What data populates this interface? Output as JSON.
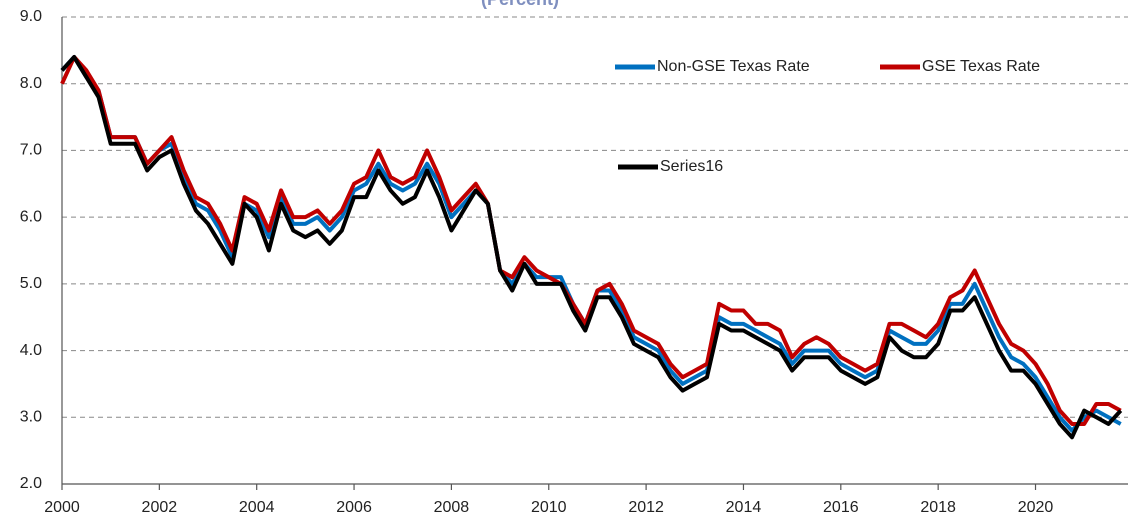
{
  "chart_data": {
    "type": "line",
    "subtitle": "(Percent)",
    "x": [
      2000,
      2000.25,
      2000.5,
      2000.75,
      2001,
      2001.25,
      2001.5,
      2001.75,
      2002,
      2002.25,
      2002.5,
      2002.75,
      2003,
      2003.25,
      2003.5,
      2003.75,
      2004,
      2004.25,
      2004.5,
      2004.75,
      2005,
      2005.25,
      2005.5,
      2005.75,
      2006,
      2006.25,
      2006.5,
      2006.75,
      2007,
      2007.25,
      2007.5,
      2007.75,
      2008,
      2008.25,
      2008.5,
      2008.75,
      2009,
      2009.25,
      2009.5,
      2009.75,
      2010,
      2010.25,
      2010.5,
      2010.75,
      2011,
      2011.25,
      2011.5,
      2011.75,
      2012,
      2012.25,
      2012.5,
      2012.75,
      2013,
      2013.25,
      2013.5,
      2013.75,
      2014,
      2014.25,
      2014.5,
      2014.75,
      2015,
      2015.25,
      2015.5,
      2015.75,
      2016,
      2016.25,
      2016.5,
      2016.75,
      2017,
      2017.25,
      2017.5,
      2017.75,
      2018,
      2018.25,
      2018.5,
      2018.75,
      2019,
      2019.25,
      2019.5,
      2019.75,
      2020,
      2020.25,
      2020.5,
      2020.75,
      2021,
      2021.25,
      2021.5,
      2021.75
    ],
    "series": [
      {
        "name": "Non-GSE Texas Rate",
        "color": "#0070c0",
        "values": [
          8.2,
          8.4,
          8.1,
          7.9,
          7.2,
          7.2,
          7.2,
          6.8,
          7.0,
          7.1,
          6.6,
          6.2,
          6.1,
          5.8,
          5.4,
          6.2,
          6.1,
          5.7,
          6.3,
          5.9,
          5.9,
          6.0,
          5.8,
          6.0,
          6.4,
          6.5,
          6.8,
          6.5,
          6.4,
          6.5,
          6.8,
          6.5,
          6.0,
          6.2,
          6.4,
          6.2,
          5.2,
          5.0,
          5.3,
          5.1,
          5.1,
          5.1,
          4.7,
          4.4,
          4.9,
          4.9,
          4.6,
          4.2,
          4.1,
          4.0,
          3.7,
          3.5,
          3.6,
          3.7,
          4.5,
          4.4,
          4.4,
          4.3,
          4.2,
          4.1,
          3.8,
          4.0,
          4.0,
          4.0,
          3.8,
          3.7,
          3.6,
          3.7,
          4.3,
          4.2,
          4.1,
          4.1,
          4.3,
          4.7,
          4.7,
          5.0,
          4.6,
          4.2,
          3.9,
          3.8,
          3.6,
          3.3,
          3.0,
          2.8,
          3.0,
          3.1,
          3.0,
          2.9
        ]
      },
      {
        "name": "GSE Texas Rate",
        "color": "#c00000",
        "values": [
          8.0,
          8.4,
          8.2,
          7.9,
          7.2,
          7.2,
          7.2,
          6.8,
          7.0,
          7.2,
          6.7,
          6.3,
          6.2,
          5.9,
          5.5,
          6.3,
          6.2,
          5.8,
          6.4,
          6.0,
          6.0,
          6.1,
          5.9,
          6.1,
          6.5,
          6.6,
          7.0,
          6.6,
          6.5,
          6.6,
          7.0,
          6.6,
          6.1,
          6.3,
          6.5,
          6.2,
          5.2,
          5.1,
          5.4,
          5.2,
          5.1,
          5.0,
          4.7,
          4.4,
          4.9,
          5.0,
          4.7,
          4.3,
          4.2,
          4.1,
          3.8,
          3.6,
          3.7,
          3.8,
          4.7,
          4.6,
          4.6,
          4.4,
          4.4,
          4.3,
          3.9,
          4.1,
          4.2,
          4.1,
          3.9,
          3.8,
          3.7,
          3.8,
          4.4,
          4.4,
          4.3,
          4.2,
          4.4,
          4.8,
          4.9,
          5.2,
          4.8,
          4.4,
          4.1,
          4.0,
          3.8,
          3.5,
          3.1,
          2.9,
          2.9,
          3.2,
          3.2,
          3.1
        ]
      },
      {
        "name": "Series16",
        "color": "#000000",
        "values": [
          8.2,
          8.4,
          8.1,
          7.8,
          7.1,
          7.1,
          7.1,
          6.7,
          6.9,
          7.0,
          6.5,
          6.1,
          5.9,
          5.6,
          5.3,
          6.2,
          6.0,
          5.5,
          6.2,
          5.8,
          5.7,
          5.8,
          5.6,
          5.8,
          6.3,
          6.3,
          6.7,
          6.4,
          6.2,
          6.3,
          6.7,
          6.3,
          5.8,
          6.1,
          6.4,
          6.2,
          5.2,
          4.9,
          5.3,
          5.0,
          5.0,
          5.0,
          4.6,
          4.3,
          4.8,
          4.8,
          4.5,
          4.1,
          4.0,
          3.9,
          3.6,
          3.4,
          3.5,
          3.6,
          4.4,
          4.3,
          4.3,
          4.2,
          4.1,
          4.0,
          3.7,
          3.9,
          3.9,
          3.9,
          3.7,
          3.6,
          3.5,
          3.6,
          4.2,
          4.0,
          3.9,
          3.9,
          4.1,
          4.6,
          4.6,
          4.8,
          4.4,
          4.0,
          3.7,
          3.7,
          3.5,
          3.2,
          2.9,
          2.7,
          3.1,
          3.0,
          2.9,
          3.1
        ]
      }
    ],
    "xlim": [
      2000,
      2021.9
    ],
    "xticks": [
      2000,
      2002,
      2004,
      2006,
      2008,
      2010,
      2012,
      2014,
      2016,
      2018,
      2020
    ],
    "ylim": [
      2,
      9
    ],
    "yticks": [
      {
        "value": 2,
        "label": "2.0"
      },
      {
        "value": 3,
        "label": "3.0"
      },
      {
        "value": 4,
        "label": "4.0"
      },
      {
        "value": 5,
        "label": "5.0"
      },
      {
        "value": 6,
        "label": "6.0"
      },
      {
        "value": 7,
        "label": "7.0"
      },
      {
        "value": 8,
        "label": "8.0"
      },
      {
        "value": 9,
        "label": "9.0"
      }
    ],
    "grid": true
  }
}
